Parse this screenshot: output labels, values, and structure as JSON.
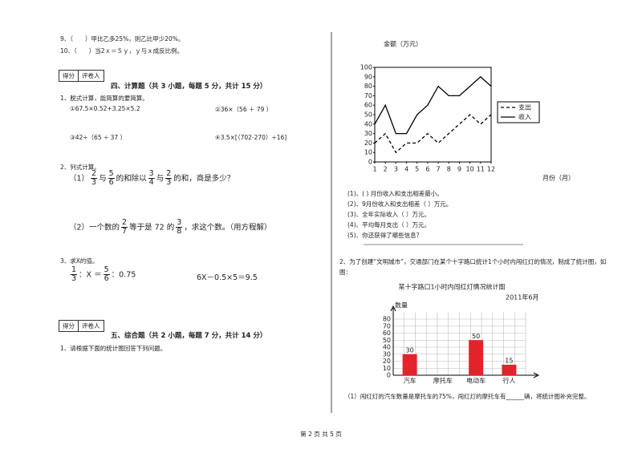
{
  "left": {
    "q9": "9、（　　）甲比乙多25%，则乙比甲少20%。",
    "q10": "10、（　　）当2ｘ＝５ｙ，ｙ与ｘ成反比例。",
    "section4": {
      "score": "得分",
      "grader": "评卷人",
      "title": "四、计算题（共 3 小题，每题 5 分，共计 15 分）"
    },
    "q1": {
      "stem": "1、脱式计算，能简算的要简算。",
      "parts": [
        "①67.5×0.52+3.25×5.2",
        "②36×（56 ＋ 79 ）",
        "③42÷（65 ÷ 37 ）",
        "④3.5×[（702-270）÷16]"
      ]
    },
    "q2": {
      "stem": "2、列式计算。",
      "p1": [
        "（1）",
        {
          "num": "2",
          "den": "3"
        },
        "与",
        {
          "num": "5",
          "den": "6"
        },
        "的和除以",
        {
          "num": "3",
          "den": "4"
        },
        "与",
        {
          "num": "2",
          "den": "3"
        },
        "的和，商是多少？"
      ],
      "p2": [
        "（2）一个数的",
        {
          "num": "2",
          "den": "7"
        },
        "等于是 72 的",
        {
          "num": "3",
          "den": "8"
        },
        "，求这个数。（用方程解）"
      ]
    },
    "q3": {
      "stem": "3、求X的值。",
      "eq1": [
        {
          "num": "1",
          "den": "3"
        },
        "：X ＝",
        {
          "num": "5",
          "den": "6"
        },
        "：0.75"
      ],
      "eq2": "6X－0.5×5＝9.5"
    },
    "section5": {
      "score": "得分",
      "grader": "评卷人",
      "title": "五、综合题（共 2 小题，每题 7 分，共计 14 分）",
      "q1": "1、请根据下面的统计图回答下列问题。"
    }
  },
  "right": {
    "questions": [
      "(1)、(  ) 月份收入和支出相差最小。",
      "(2)、9月份收入和支出相差（  ）万元。",
      "(3)、全年实际收入（  ）万元。",
      "(4)、平均每月支出（  ）万元。",
      "(5)、你还获得了哪些信息？"
    ],
    "q2": "2、为了创建“文明城市”，交通部门在某个十字路口统计1个小时内闯红灯的情况，制成了统计图，如图：",
    "q2_1": "（1）闯红灯的汽车数量是摩托车的75%，闯红灯的摩托车有______辆，将统计图补充完整。"
  },
  "footer": "第 2 页 共 5 页",
  "chart_data": [
    {
      "type": "line",
      "title": "金额（万元）",
      "x_label": "月份（月）",
      "x": [
        1,
        2,
        3,
        4,
        5,
        6,
        7,
        8,
        9,
        10,
        11,
        12
      ],
      "xlim": [
        1,
        12
      ],
      "xticks": [
        1,
        2,
        3,
        4,
        5,
        6,
        7,
        8,
        9,
        10,
        11,
        12
      ],
      "ylim": [
        0,
        100
      ],
      "yticks": [
        0,
        10,
        20,
        30,
        40,
        50,
        60,
        70,
        80,
        90,
        100
      ],
      "legend": "right",
      "series": [
        {
          "name": "支出",
          "color": "#000000",
          "line_style": "dashed",
          "values": [
            20,
            30,
            10,
            20,
            20,
            30,
            20,
            30,
            40,
            50,
            40,
            50
          ]
        },
        {
          "name": "收入",
          "color": "#000000",
          "line_style": "solid",
          "values": [
            40,
            60,
            30,
            30,
            50,
            60,
            80,
            70,
            70,
            80,
            90,
            80
          ]
        }
      ]
    },
    {
      "type": "bar",
      "title": "某十字路口1小时内闯红灯情况统计图",
      "subtitle": "2011年6月",
      "y_label": "数量",
      "categories": [
        "汽车",
        "摩托车",
        "电动车",
        "行人"
      ],
      "values": [
        30,
        null,
        50,
        15
      ],
      "color": "#e3232b",
      "ylim": [
        0,
        80
      ],
      "yticks": [
        0,
        10,
        20,
        30,
        40,
        50,
        60,
        70,
        80
      ],
      "grid": true
    }
  ]
}
